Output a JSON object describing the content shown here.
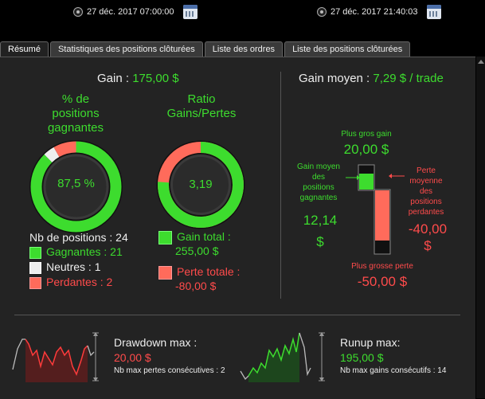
{
  "dates": {
    "start": "27 déc. 2017 07:00:00",
    "end": "27 déc. 2017 21:40:03"
  },
  "tabs": [
    {
      "label": "Résumé"
    },
    {
      "label": "Statistiques des positions clôturées"
    },
    {
      "label": "Liste des ordres"
    },
    {
      "label": "Liste des positions clôturées"
    }
  ],
  "gain": {
    "label": "Gain :",
    "value": "175,00 $"
  },
  "win_pct": {
    "title_lines": [
      "% de",
      "positions",
      "gagnantes"
    ],
    "value": "87,5 %",
    "fraction": 0.875
  },
  "ratio": {
    "title_lines": [
      "Ratio",
      "Gains/Pertes"
    ],
    "value": "3,19",
    "fraction": 0.76
  },
  "counts": {
    "total_label": "Nb de positions : 24",
    "winners": "Gagnantes : 21",
    "neutral": "Neutres : 1",
    "losers": "Perdantes : 2"
  },
  "totals": {
    "gain_label": "Gain total :",
    "gain_value": "255,00 $",
    "loss_label": "Perte totale :",
    "loss_value": "-80,00 $"
  },
  "avg": {
    "title": "Gain moyen :",
    "value": "7,29 $ / trade",
    "biggest_win_label": "Plus gros gain",
    "biggest_win_value": "20,00 $",
    "avg_win_label_lines": [
      "Gain moyen",
      "des",
      "positions",
      "gagnantes"
    ],
    "avg_win_value_lines": [
      "12,14",
      "$"
    ],
    "avg_loss_label_lines": [
      "Perte",
      "moyenne",
      "des",
      "positions",
      "perdantes"
    ],
    "avg_loss_value_lines": [
      "-40,00",
      "$"
    ],
    "biggest_loss_label": "Plus grosse perte",
    "biggest_loss_value": "-50,00 $"
  },
  "drawdown": {
    "title": "Drawdown max :",
    "value": "20,00 $",
    "sub": "Nb max pertes consécutives : 2"
  },
  "runup": {
    "title": "Runup max:",
    "value": "195,00 $",
    "sub": "Nb max gains consécutifs : 14"
  },
  "colors": {
    "green": "#3ddc2e",
    "red": "#ff4b4b",
    "panel": "#232323"
  }
}
